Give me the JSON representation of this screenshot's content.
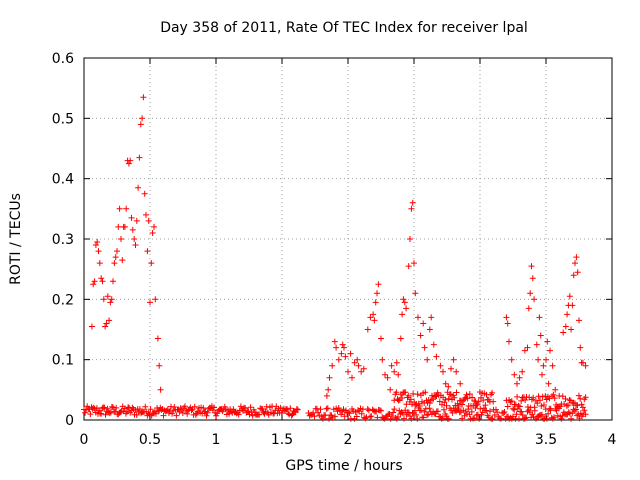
{
  "chart_data": {
    "type": "scatter",
    "title": "Day 358 of 2011, Rate Of TEC Index for receiver lpal",
    "xlabel": "GPS time / hours",
    "ylabel": "ROTI / TECUs",
    "xlim": [
      0,
      4
    ],
    "ylim": [
      0,
      0.6
    ],
    "xticks": [
      "0",
      "0.5",
      "1",
      "1.5",
      "2",
      "2.5",
      "3",
      "3.5",
      "4"
    ],
    "yticks": [
      "0",
      "0.1",
      "0.2",
      "0.3",
      "0.4",
      "0.5",
      "0.6"
    ],
    "grid": true,
    "marker": "plus",
    "color": "#ff0000",
    "clusters": [
      {
        "x": [
          0.0,
          1.62
        ],
        "base": 0.015,
        "amp": 0.008,
        "n": 200
      },
      {
        "x": [
          1.7,
          3.8
        ],
        "base": 0.01,
        "amp": 0.01,
        "n": 230
      },
      {
        "x": [
          2.35,
          3.1
        ],
        "base": 0.035,
        "amp": 0.012,
        "n": 90
      },
      {
        "x": [
          3.2,
          3.8
        ],
        "base": 0.03,
        "amp": 0.012,
        "n": 60
      }
    ],
    "points": [
      [
        0.06,
        0.155
      ],
      [
        0.07,
        0.225
      ],
      [
        0.08,
        0.23
      ],
      [
        0.09,
        0.29
      ],
      [
        0.1,
        0.295
      ],
      [
        0.11,
        0.28
      ],
      [
        0.12,
        0.26
      ],
      [
        0.13,
        0.235
      ],
      [
        0.14,
        0.23
      ],
      [
        0.15,
        0.2
      ],
      [
        0.16,
        0.155
      ],
      [
        0.17,
        0.16
      ],
      [
        0.18,
        0.205
      ],
      [
        0.19,
        0.165
      ],
      [
        0.2,
        0.195
      ],
      [
        0.21,
        0.2
      ],
      [
        0.22,
        0.23
      ],
      [
        0.23,
        0.26
      ],
      [
        0.24,
        0.27
      ],
      [
        0.25,
        0.28
      ],
      [
        0.26,
        0.32
      ],
      [
        0.27,
        0.35
      ],
      [
        0.28,
        0.3
      ],
      [
        0.29,
        0.265
      ],
      [
        0.3,
        0.32
      ],
      [
        0.31,
        0.32
      ],
      [
        0.32,
        0.35
      ],
      [
        0.33,
        0.43
      ],
      [
        0.34,
        0.425
      ],
      [
        0.35,
        0.43
      ],
      [
        0.36,
        0.335
      ],
      [
        0.37,
        0.315
      ],
      [
        0.38,
        0.3
      ],
      [
        0.39,
        0.29
      ],
      [
        0.4,
        0.33
      ],
      [
        0.41,
        0.385
      ],
      [
        0.42,
        0.435
      ],
      [
        0.43,
        0.49
      ],
      [
        0.44,
        0.5
      ],
      [
        0.45,
        0.535
      ],
      [
        0.46,
        0.375
      ],
      [
        0.47,
        0.34
      ],
      [
        0.48,
        0.28
      ],
      [
        0.49,
        0.33
      ],
      [
        0.5,
        0.195
      ],
      [
        0.51,
        0.26
      ],
      [
        0.52,
        0.31
      ],
      [
        0.53,
        0.32
      ],
      [
        0.54,
        0.2
      ],
      [
        0.56,
        0.135
      ],
      [
        0.57,
        0.09
      ],
      [
        0.58,
        0.05
      ],
      [
        1.84,
        0.04
      ],
      [
        1.85,
        0.05
      ],
      [
        1.86,
        0.07
      ],
      [
        1.88,
        0.09
      ],
      [
        1.9,
        0.13
      ],
      [
        1.91,
        0.12
      ],
      [
        1.93,
        0.1
      ],
      [
        1.95,
        0.11
      ],
      [
        1.96,
        0.125
      ],
      [
        1.97,
        0.12
      ],
      [
        1.98,
        0.105
      ],
      [
        2.0,
        0.08
      ],
      [
        2.02,
        0.11
      ],
      [
        2.03,
        0.07
      ],
      [
        2.05,
        0.095
      ],
      [
        2.07,
        0.1
      ],
      [
        2.08,
        0.09
      ],
      [
        2.1,
        0.08
      ],
      [
        2.12,
        0.085
      ],
      [
        2.15,
        0.15
      ],
      [
        2.17,
        0.17
      ],
      [
        2.19,
        0.175
      ],
      [
        2.2,
        0.165
      ],
      [
        2.21,
        0.195
      ],
      [
        2.22,
        0.21
      ],
      [
        2.23,
        0.225
      ],
      [
        2.25,
        0.135
      ],
      [
        2.26,
        0.1
      ],
      [
        2.28,
        0.075
      ],
      [
        2.3,
        0.07
      ],
      [
        2.32,
        0.05
      ],
      [
        2.33,
        0.09
      ],
      [
        2.35,
        0.08
      ],
      [
        2.37,
        0.095
      ],
      [
        2.38,
        0.075
      ],
      [
        2.4,
        0.135
      ],
      [
        2.41,
        0.175
      ],
      [
        2.42,
        0.2
      ],
      [
        2.43,
        0.195
      ],
      [
        2.44,
        0.185
      ],
      [
        2.46,
        0.255
      ],
      [
        2.47,
        0.3
      ],
      [
        2.48,
        0.35
      ],
      [
        2.49,
        0.36
      ],
      [
        2.5,
        0.26
      ],
      [
        2.51,
        0.21
      ],
      [
        2.53,
        0.17
      ],
      [
        2.55,
        0.14
      ],
      [
        2.57,
        0.16
      ],
      [
        2.58,
        0.12
      ],
      [
        2.6,
        0.1
      ],
      [
        2.62,
        0.15
      ],
      [
        2.63,
        0.17
      ],
      [
        2.65,
        0.125
      ],
      [
        2.67,
        0.105
      ],
      [
        2.7,
        0.09
      ],
      [
        2.72,
        0.08
      ],
      [
        2.74,
        0.06
      ],
      [
        2.76,
        0.055
      ],
      [
        2.78,
        0.085
      ],
      [
        2.8,
        0.1
      ],
      [
        2.82,
        0.08
      ],
      [
        2.85,
        0.06
      ],
      [
        3.2,
        0.17
      ],
      [
        3.21,
        0.16
      ],
      [
        3.22,
        0.13
      ],
      [
        3.24,
        0.1
      ],
      [
        3.26,
        0.075
      ],
      [
        3.28,
        0.06
      ],
      [
        3.3,
        0.07
      ],
      [
        3.32,
        0.08
      ],
      [
        3.34,
        0.115
      ],
      [
        3.36,
        0.12
      ],
      [
        3.37,
        0.185
      ],
      [
        3.38,
        0.21
      ],
      [
        3.39,
        0.255
      ],
      [
        3.4,
        0.235
      ],
      [
        3.41,
        0.2
      ],
      [
        3.43,
        0.125
      ],
      [
        3.44,
        0.1
      ],
      [
        3.45,
        0.17
      ],
      [
        3.46,
        0.14
      ],
      [
        3.47,
        0.075
      ],
      [
        3.48,
        0.09
      ],
      [
        3.5,
        0.1
      ],
      [
        3.51,
        0.13
      ],
      [
        3.52,
        0.06
      ],
      [
        3.53,
        0.115
      ],
      [
        3.55,
        0.09
      ],
      [
        3.57,
        0.05
      ],
      [
        3.6,
        0.04
      ],
      [
        3.63,
        0.145
      ],
      [
        3.65,
        0.155
      ],
      [
        3.66,
        0.175
      ],
      [
        3.67,
        0.19
      ],
      [
        3.68,
        0.205
      ],
      [
        3.69,
        0.15
      ],
      [
        3.7,
        0.19
      ],
      [
        3.71,
        0.24
      ],
      [
        3.72,
        0.26
      ],
      [
        3.73,
        0.27
      ],
      [
        3.74,
        0.245
      ],
      [
        3.75,
        0.165
      ],
      [
        3.76,
        0.12
      ],
      [
        3.77,
        0.095
      ],
      [
        3.78,
        0.095
      ],
      [
        3.8,
        0.09
      ]
    ]
  }
}
